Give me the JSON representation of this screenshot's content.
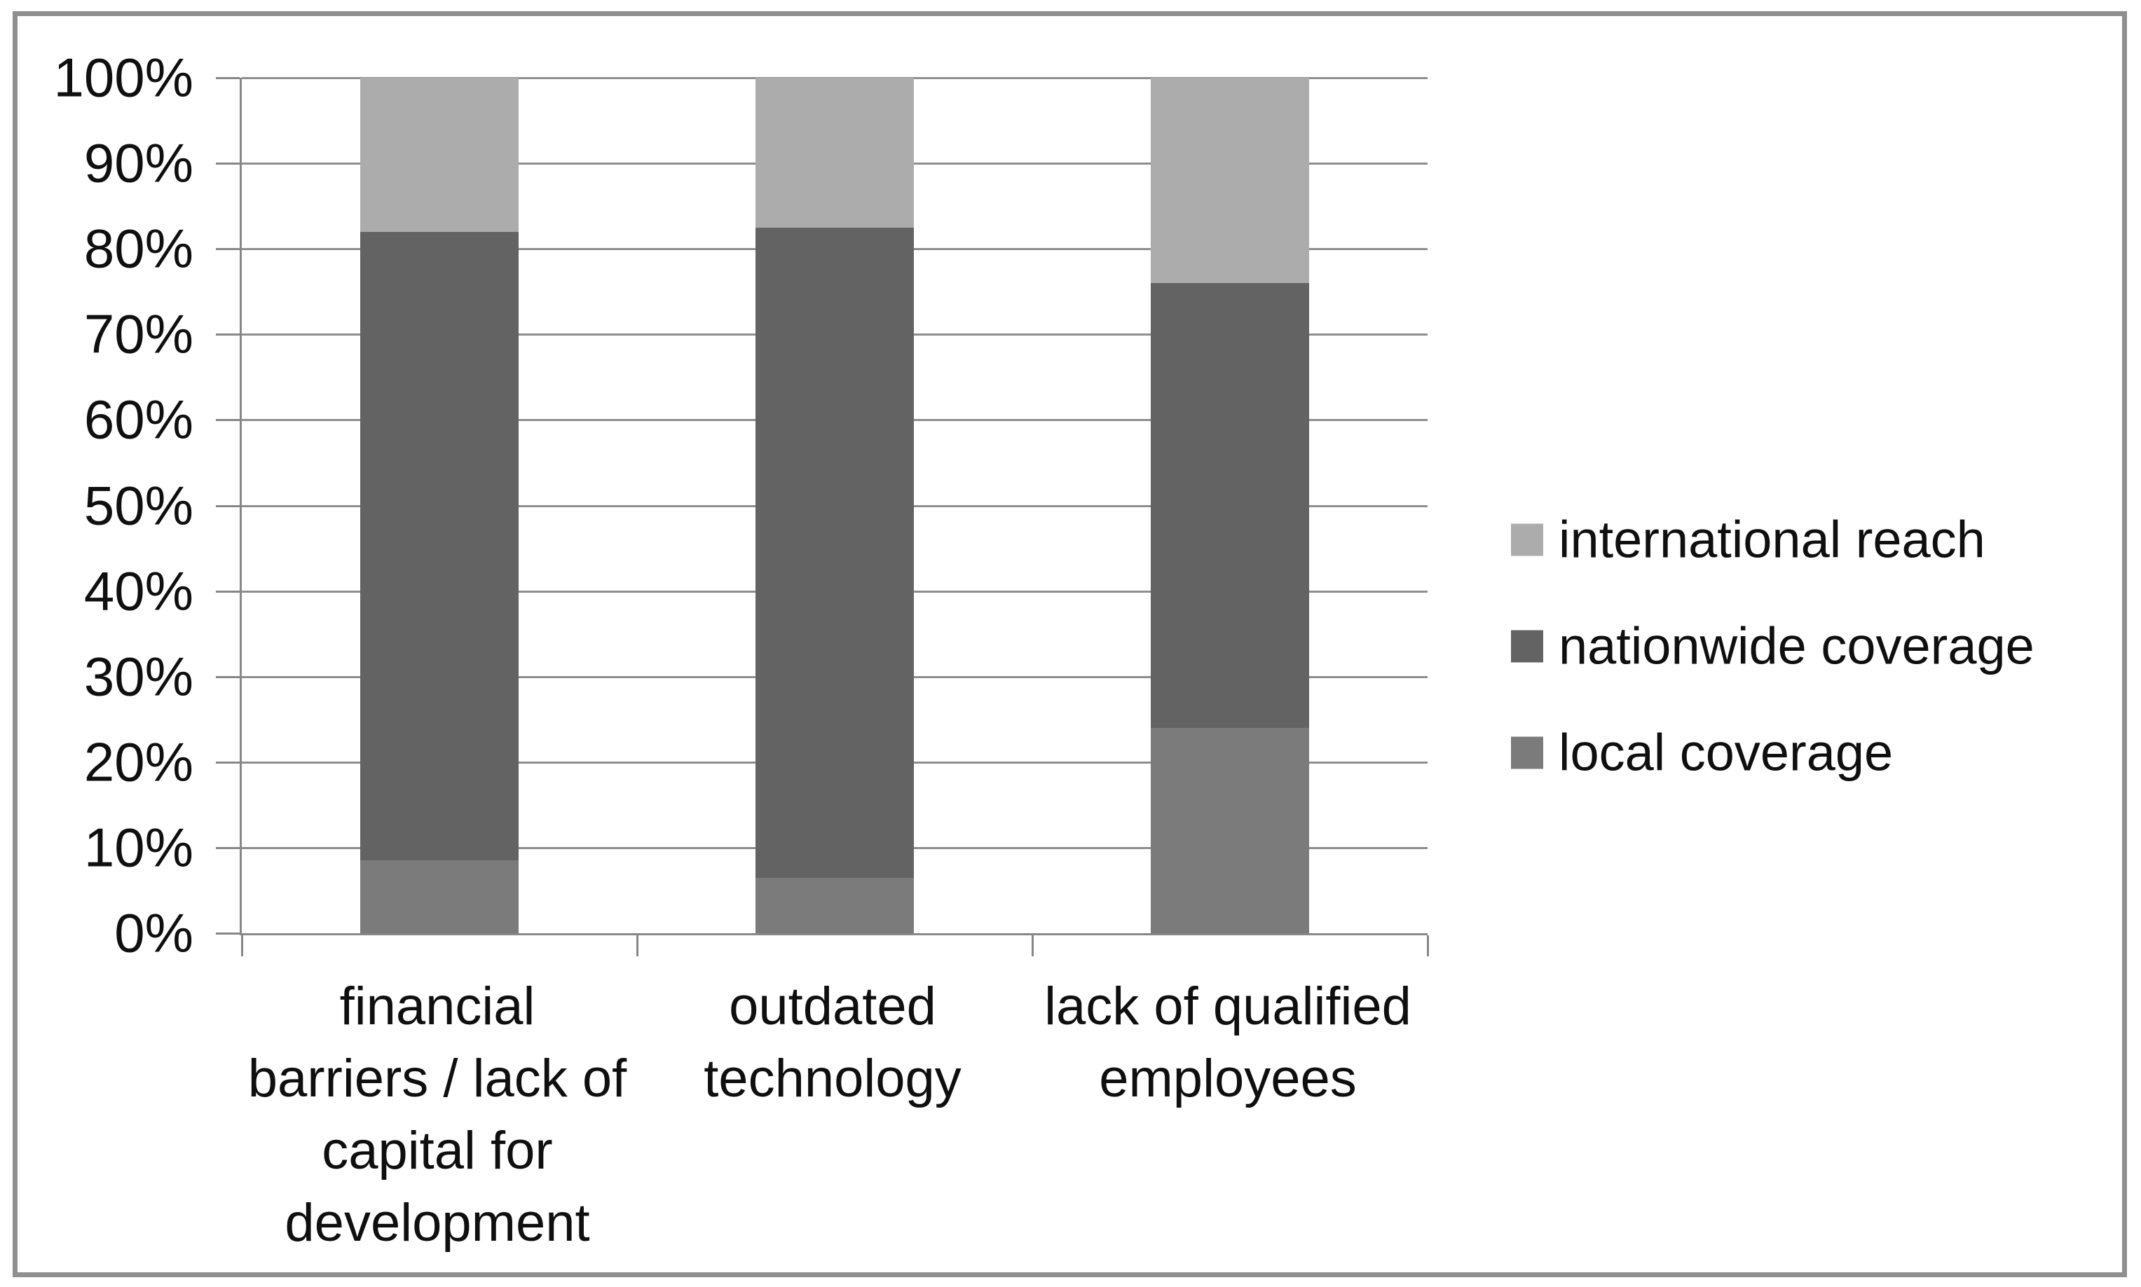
{
  "chart_data": {
    "type": "bar",
    "variant": "100-percent-stacked-column",
    "title": "",
    "xlabel": "",
    "ylabel": "",
    "grid": true,
    "legend_position": "right",
    "categories": [
      {
        "label": "financial barriers / lack of capital for development",
        "lines": [
          "financial",
          "barriers / lack of",
          "capital for",
          "development"
        ]
      },
      {
        "label": "outdated technology",
        "lines": [
          "outdated",
          "technology"
        ]
      },
      {
        "label": "lack of qualified employees",
        "lines": [
          "lack of qualified",
          "employees"
        ]
      }
    ],
    "series": [
      {
        "name": "local coverage",
        "color": "#7b7b7b",
        "values": [
          8.5,
          6.5,
          24
        ]
      },
      {
        "name": "nationwide coverage",
        "color": "#636363",
        "values": [
          73.5,
          76,
          52
        ]
      },
      {
        "name": "international reach",
        "color": "#acacac",
        "values": [
          18,
          17.5,
          24
        ]
      }
    ],
    "y_axis": {
      "min": 0,
      "max": 100,
      "tick_step": 10,
      "ticks": [
        "100%",
        "90%",
        "80%",
        "70%",
        "60%",
        "50%",
        "40%",
        "30%",
        "20%",
        "10%",
        "0%"
      ]
    }
  },
  "styles": {
    "background": "#ffffff",
    "frame_border_color": "#8f8f8f",
    "grid_color": "#8e8e8e",
    "axis_color": "#878787",
    "text_color": "#0f0f0f"
  }
}
